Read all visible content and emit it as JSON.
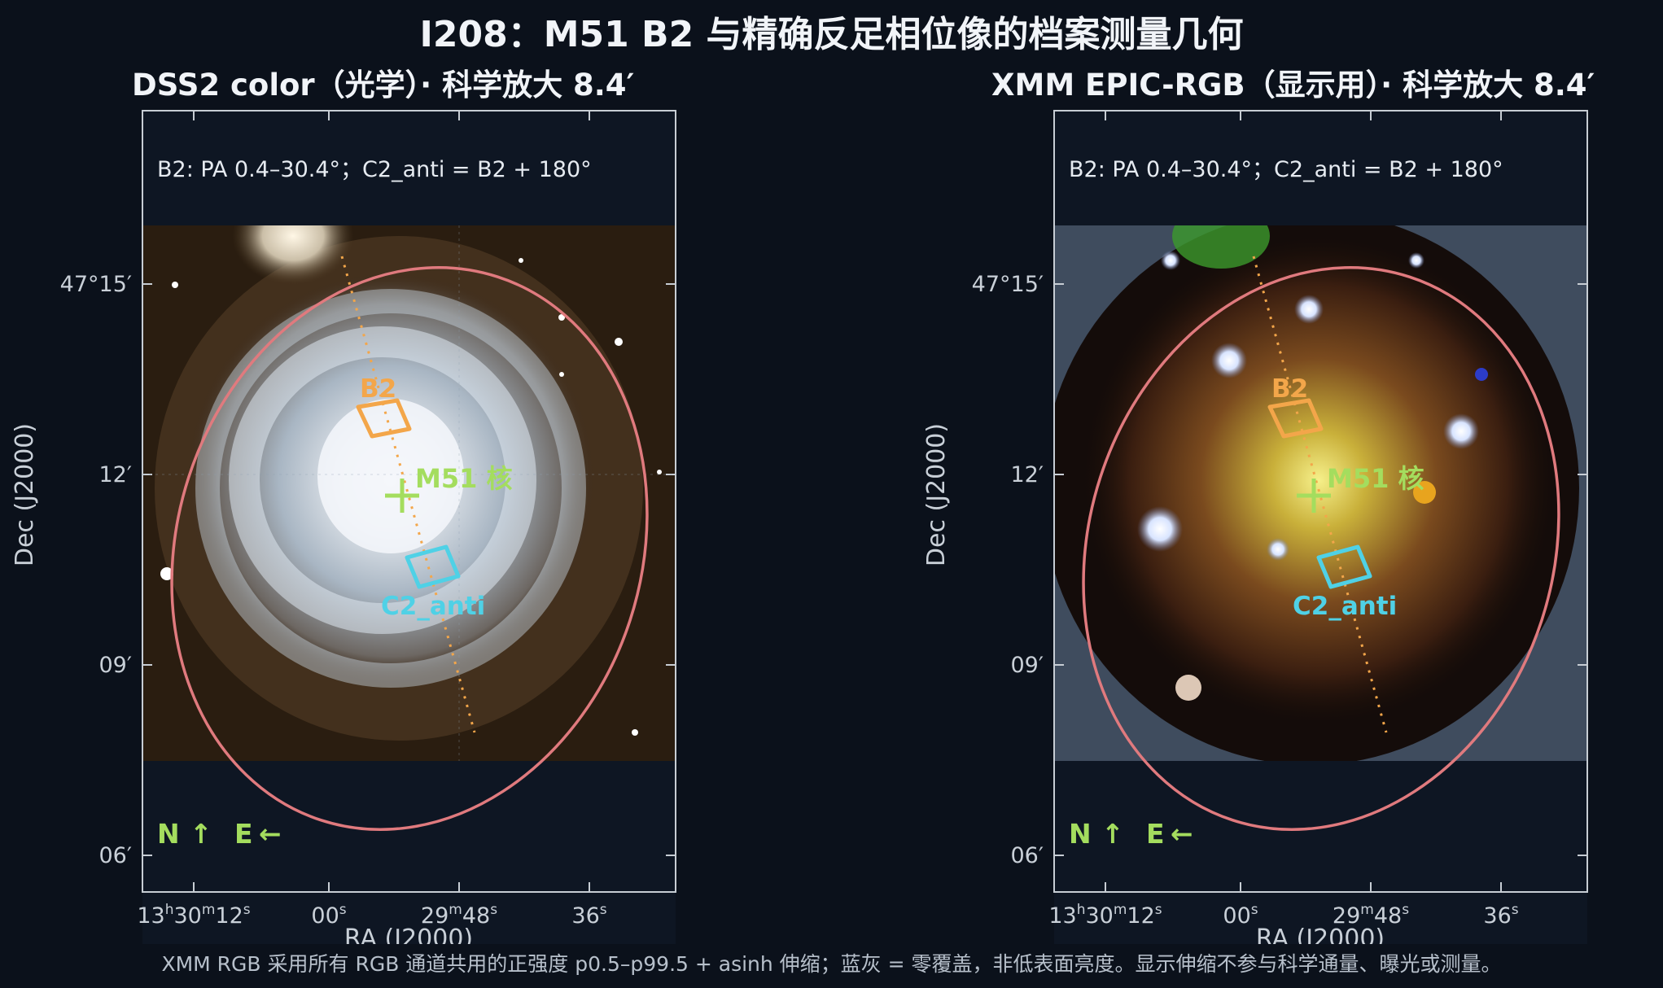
{
  "figure": {
    "title": "I208：M51 B2 与精确反足相位像的档案测量几何",
    "footer": "XMM RGB 采用所有 RGB 通道共用的正强度 p0.5–p99.5 + asinh 伸缩；蓝灰 = 零覆盖，非低表面亮度。显示伸缩不参与科学通量、曝光或测量。"
  },
  "panels": [
    {
      "id": "dss2",
      "subtitle": "DSS2 color（光学）· 科学放大 8.4′",
      "annotation": "B2: PA 0.4–30.4°；C2_anti = B2 + 180°",
      "region_b2": "B2",
      "region_c2": "C2_anti",
      "nucleus_label": "M51 核",
      "compass_n": "N",
      "compass_e": "E",
      "compass_n_arrow": "↑",
      "compass_e_arrow": "←"
    },
    {
      "id": "xmm",
      "subtitle": "XMM EPIC-RGB（显示用）· 科学放大 8.4′",
      "annotation": "B2: PA 0.4–30.4°；C2_anti = B2 + 180°",
      "region_b2": "B2",
      "region_c2": "C2_anti",
      "nucleus_label": "M51 核",
      "compass_n": "N",
      "compass_e": "E",
      "compass_n_arrow": "↑",
      "compass_e_arrow": "←"
    }
  ],
  "axes": {
    "xlabel": "RA (J2000)",
    "ylabel": "Dec (J2000)",
    "dec_ticks": [
      "47°15′",
      "12′",
      "09′",
      "06′"
    ],
    "ra_ticks": [
      {
        "main": "13",
        "h": "h",
        "mid": "30",
        "m": "m",
        "sec": "12",
        "s": "s"
      },
      {
        "main": "00",
        "s": "s"
      },
      {
        "main": "29",
        "m": "m",
        "sec": "48",
        "s": "s"
      },
      {
        "main": "36",
        "s": "s"
      }
    ]
  },
  "colors": {
    "background": "#0b111b",
    "aperture_ellipse": "#e07a7e",
    "b2_region": "#f3a64a",
    "c2_region": "#4fd1e6",
    "nucleus_marker": "#a4dd5e",
    "compass": "#a4dd5e",
    "no_coverage": "#3f4c5e"
  }
}
